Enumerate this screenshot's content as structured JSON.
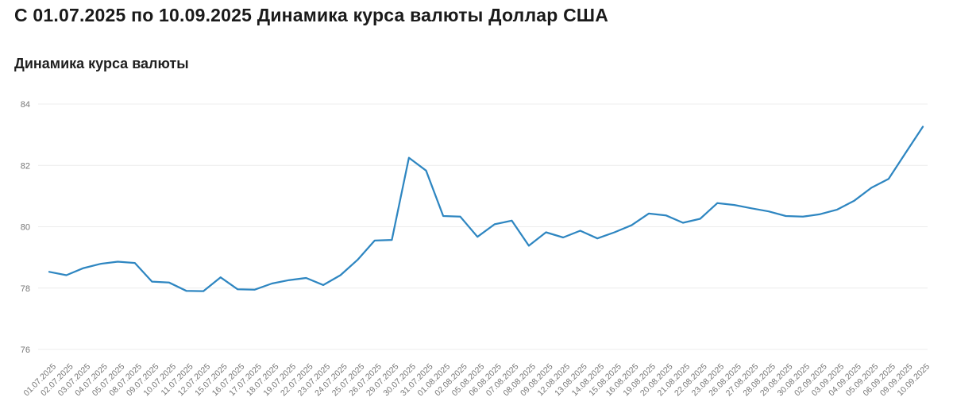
{
  "header": {
    "title": "С 01.07.2025 по 10.09.2025 Динамика курса валюты Доллар США"
  },
  "chart": {
    "subtitle": "Динамика курса валюты"
  },
  "chart_data": {
    "type": "line",
    "title": "Динамика курса валюты",
    "series_name": "Доллар США",
    "x": [
      "01.07.2025",
      "02.07.2025",
      "03.07.2025",
      "04.07.2025",
      "05.07.2025",
      "08.07.2025",
      "09.07.2025",
      "10.07.2025",
      "11.07.2025",
      "12.07.2025",
      "15.07.2025",
      "16.07.2025",
      "17.07.2025",
      "18.07.2025",
      "19.07.2025",
      "22.07.2025",
      "23.07.2025",
      "24.07.2025",
      "25.07.2025",
      "26.07.2025",
      "29.07.2025",
      "30.07.2025",
      "31.07.2025",
      "01.08.2025",
      "02.08.2025",
      "05.08.2025",
      "06.08.2025",
      "07.08.2025",
      "08.08.2025",
      "09.08.2025",
      "12.08.2025",
      "13.08.2025",
      "14.08.2025",
      "15.08.2025",
      "16.08.2025",
      "19.08.2025",
      "20.08.2025",
      "21.08.2025",
      "22.08.2025",
      "23.08.2025",
      "26.08.2025",
      "27.08.2025",
      "28.08.2025",
      "29.08.2025",
      "30.08.2025",
      "02.09.2025",
      "03.09.2025",
      "04.09.2025",
      "05.09.2025",
      "06.09.2025",
      "09.09.2025",
      "10.09.2025"
    ],
    "values": [
      78.53,
      78.42,
      78.65,
      78.79,
      78.86,
      78.82,
      78.21,
      78.18,
      77.91,
      77.9,
      78.35,
      77.96,
      77.95,
      78.15,
      78.26,
      78.33,
      78.1,
      78.42,
      78.92,
      79.55,
      79.57,
      82.25,
      81.83,
      80.35,
      80.33,
      79.67,
      80.08,
      80.2,
      79.38,
      79.82,
      79.65,
      79.87,
      79.62,
      79.82,
      80.05,
      80.43,
      80.37,
      80.13,
      80.26,
      80.77,
      80.71,
      80.6,
      80.5,
      80.35,
      80.33,
      80.41,
      80.56,
      80.85,
      81.27,
      81.56,
      82.41,
      83.26
    ],
    "ylim": [
      76,
      84
    ],
    "yticks": [
      76,
      78,
      80,
      82,
      84
    ],
    "grid": true,
    "legend_position": "none",
    "line_color": "#2e86c1",
    "grid_color": "#ececec",
    "tick_label_color": "#767676"
  }
}
